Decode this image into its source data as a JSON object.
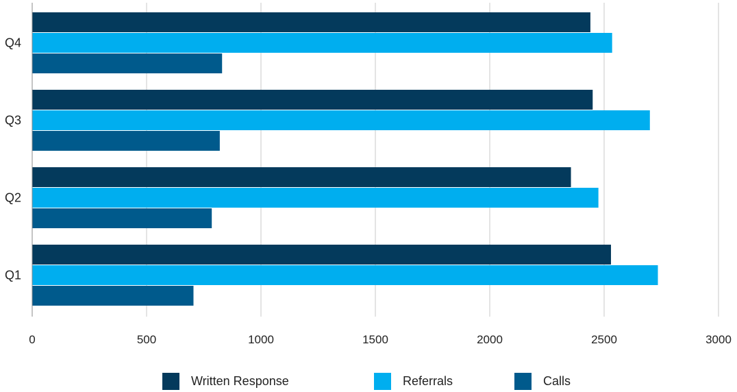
{
  "chart_data": {
    "type": "bar",
    "orientation": "horizontal",
    "categories": [
      "Q1",
      "Q2",
      "Q3",
      "Q4"
    ],
    "series": [
      {
        "name": "Written Response",
        "color": "#043a5c",
        "values": [
          2530,
          2355,
          2450,
          2440
        ]
      },
      {
        "name": "Referrals",
        "color": "#00aeef",
        "values": [
          2735,
          2475,
          2700,
          2535
        ]
      },
      {
        "name": "Calls",
        "color": "#005a8c",
        "values": [
          705,
          785,
          820,
          830
        ]
      }
    ],
    "x_ticks": [
      "0",
      "500",
      "1000",
      "1500",
      "2000",
      "2500",
      "3000"
    ],
    "xlim": [
      0,
      3000
    ],
    "grid": true,
    "legend_position": "bottom",
    "title": "",
    "xlabel": "",
    "ylabel": ""
  }
}
